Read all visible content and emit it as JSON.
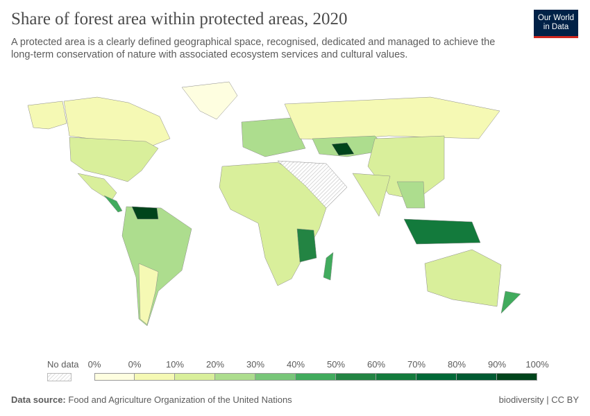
{
  "header": {
    "title": "Share of forest area within protected areas, 2020",
    "subtitle": "A protected area is a clearly defined geographical space, recognised, dedicated and managed to achieve the long-term conservation of nature with associated ecosystem services and cultural values.",
    "logo_line1": "Our World",
    "logo_line2": "in Data"
  },
  "legend": {
    "no_data_label": "No data",
    "ticks": [
      "0%",
      "0%",
      "10%",
      "20%",
      "30%",
      "40%",
      "50%",
      "60%",
      "70%",
      "80%",
      "90%",
      "100%"
    ],
    "colors": [
      "#fefee0",
      "#f5f9b4",
      "#d9ef9b",
      "#addd8e",
      "#78c679",
      "#41ab5d",
      "#238443",
      "#137a3c",
      "#006837",
      "#005a32",
      "#00441b"
    ]
  },
  "footer": {
    "source_label": "Data source:",
    "source": "Food and Agriculture Organization of the United Nations",
    "license": "biodiversity | CC BY"
  },
  "map": {
    "no_data_color": "#e6e6e6",
    "regions": [
      {
        "name": "alaska",
        "color": "#f5f9b4"
      },
      {
        "name": "canada",
        "color": "#f5f9b4"
      },
      {
        "name": "greenland",
        "color": "#fefee0"
      },
      {
        "name": "united-states",
        "color": "#d9ef9b"
      },
      {
        "name": "mexico",
        "color": "#d9ef9b"
      },
      {
        "name": "central-america",
        "color": "#41ab5d"
      },
      {
        "name": "south-america",
        "color": "#addd8e"
      },
      {
        "name": "venezuela",
        "color": "#00441b"
      },
      {
        "name": "argentina",
        "color": "#f5f9b4"
      },
      {
        "name": "europe",
        "color": "#addd8e"
      },
      {
        "name": "russia",
        "color": "#f5f9b4"
      },
      {
        "name": "africa",
        "color": "#d9ef9b"
      },
      {
        "name": "east-africa",
        "color": "#238443"
      },
      {
        "name": "madagascar",
        "color": "#41ab5d"
      },
      {
        "name": "middle-east",
        "color": "#e6e6e6"
      },
      {
        "name": "central-asia",
        "color": "#addd8e"
      },
      {
        "name": "uzbekistan",
        "color": "#00441b"
      },
      {
        "name": "china",
        "color": "#d9ef9b"
      },
      {
        "name": "india",
        "color": "#d9ef9b"
      },
      {
        "name": "southeast-asia",
        "color": "#addd8e"
      },
      {
        "name": "indonesia",
        "color": "#137a3c"
      },
      {
        "name": "australia",
        "color": "#d9ef9b"
      },
      {
        "name": "new-zealand",
        "color": "#41ab5d"
      }
    ]
  }
}
